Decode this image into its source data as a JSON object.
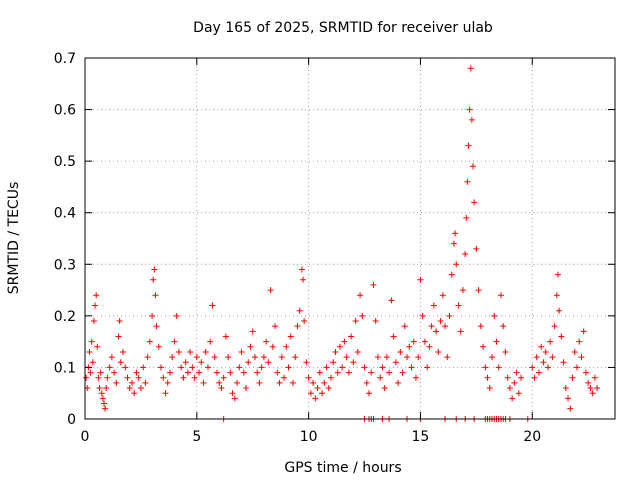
{
  "chart_data": {
    "type": "scatter",
    "title": "Day 165 of 2025, SRMTID for receiver ulab",
    "xlabel": "GPS time / hours",
    "ylabel": "SRMTID / TECUs",
    "xlim": [
      0,
      23.7
    ],
    "ylim": [
      0,
      0.7
    ],
    "x_ticks": [
      0,
      5,
      10,
      15,
      20
    ],
    "y_ticks": [
      0,
      0.1,
      0.2,
      0.3,
      0.4,
      0.5,
      0.6,
      0.7
    ],
    "x_tick_labels": [
      "0",
      "5",
      "10",
      "15",
      "20"
    ],
    "y_tick_labels": [
      "0",
      "0.1",
      "0.2",
      "0.3",
      "0.4",
      "0.5",
      "0.6",
      "0.7"
    ],
    "grid": true,
    "marker": "+",
    "color": "#ff0000",
    "series": [
      {
        "name": "SRMTID",
        "points": [
          [
            0.05,
            0.08
          ],
          [
            0.1,
            0.06
          ],
          [
            0.15,
            0.1
          ],
          [
            0.2,
            0.13
          ],
          [
            0.25,
            0.09
          ],
          [
            0.3,
            0.15
          ],
          [
            0.35,
            0.11
          ],
          [
            0.4,
            0.19
          ],
          [
            0.45,
            0.22
          ],
          [
            0.5,
            0.24
          ],
          [
            0.55,
            0.14
          ],
          [
            0.6,
            0.08
          ],
          [
            0.65,
            0.06
          ],
          [
            0.7,
            0.09
          ],
          [
            0.75,
            0.05
          ],
          [
            0.8,
            0.04
          ],
          [
            0.85,
            0.03
          ],
          [
            0.9,
            0.02
          ],
          [
            0.95,
            0.06
          ],
          [
            1.0,
            0.08
          ],
          [
            1.1,
            0.1
          ],
          [
            1.2,
            0.12
          ],
          [
            1.3,
            0.09
          ],
          [
            1.4,
            0.07
          ],
          [
            1.5,
            0.16
          ],
          [
            1.55,
            0.19
          ],
          [
            1.6,
            0.11
          ],
          [
            1.7,
            0.13
          ],
          [
            1.8,
            0.1
          ],
          [
            1.9,
            0.08
          ],
          [
            2.0,
            0.06
          ],
          [
            2.1,
            0.07
          ],
          [
            2.2,
            0.05
          ],
          [
            2.3,
            0.09
          ],
          [
            2.4,
            0.08
          ],
          [
            2.5,
            0.06
          ],
          [
            2.6,
            0.1
          ],
          [
            2.7,
            0.07
          ],
          [
            2.8,
            0.12
          ],
          [
            2.9,
            0.15
          ],
          [
            3.0,
            0.2
          ],
          [
            3.05,
            0.27
          ],
          [
            3.1,
            0.29
          ],
          [
            3.15,
            0.24
          ],
          [
            3.2,
            0.18
          ],
          [
            3.3,
            0.14
          ],
          [
            3.4,
            0.1
          ],
          [
            3.5,
            0.08
          ],
          [
            3.6,
            0.05
          ],
          [
            3.7,
            0.07
          ],
          [
            3.8,
            0.09
          ],
          [
            3.9,
            0.12
          ],
          [
            4.0,
            0.15
          ],
          [
            4.1,
            0.2
          ],
          [
            4.2,
            0.13
          ],
          [
            4.3,
            0.1
          ],
          [
            4.4,
            0.08
          ],
          [
            4.5,
            0.11
          ],
          [
            4.6,
            0.09
          ],
          [
            4.7,
            0.13
          ],
          [
            4.8,
            0.1
          ],
          [
            4.9,
            0.08
          ],
          [
            5.0,
            0.12
          ],
          [
            5.1,
            0.09
          ],
          [
            5.2,
            0.11
          ],
          [
            5.3,
            0.07
          ],
          [
            5.4,
            0.13
          ],
          [
            5.5,
            0.1
          ],
          [
            5.6,
            0.15
          ],
          [
            5.7,
            0.22
          ],
          [
            5.8,
            0.12
          ],
          [
            5.9,
            0.09
          ],
          [
            6.0,
            0.07
          ],
          [
            6.1,
            0.06
          ],
          [
            6.2,
            0.08
          ],
          [
            6.3,
            0.16
          ],
          [
            6.4,
            0.12
          ],
          [
            6.5,
            0.09
          ],
          [
            6.6,
            0.05
          ],
          [
            6.7,
            0.04
          ],
          [
            6.8,
            0.07
          ],
          [
            6.9,
            0.1
          ],
          [
            7.0,
            0.13
          ],
          [
            7.1,
            0.09
          ],
          [
            7.2,
            0.06
          ],
          [
            7.3,
            0.11
          ],
          [
            7.4,
            0.14
          ],
          [
            7.5,
            0.17
          ],
          [
            7.6,
            0.12
          ],
          [
            7.7,
            0.09
          ],
          [
            7.8,
            0.07
          ],
          [
            7.9,
            0.1
          ],
          [
            8.0,
            0.12
          ],
          [
            8.1,
            0.15
          ],
          [
            8.2,
            0.11
          ],
          [
            8.3,
            0.25
          ],
          [
            8.4,
            0.14
          ],
          [
            8.5,
            0.18
          ],
          [
            8.6,
            0.09
          ],
          [
            8.7,
            0.07
          ],
          [
            8.8,
            0.12
          ],
          [
            8.9,
            0.08
          ],
          [
            9.0,
            0.14
          ],
          [
            9.1,
            0.1
          ],
          [
            9.2,
            0.16
          ],
          [
            9.3,
            0.07
          ],
          [
            9.4,
            0.12
          ],
          [
            9.5,
            0.18
          ],
          [
            9.6,
            0.21
          ],
          [
            9.7,
            0.29
          ],
          [
            9.75,
            0.27
          ],
          [
            9.8,
            0.19
          ],
          [
            9.9,
            0.11
          ],
          [
            10.0,
            0.08
          ],
          [
            10.1,
            0.05
          ],
          [
            10.2,
            0.07
          ],
          [
            10.3,
            0.04
          ],
          [
            10.4,
            0.06
          ],
          [
            10.5,
            0.09
          ],
          [
            10.6,
            0.05
          ],
          [
            10.7,
            0.07
          ],
          [
            10.8,
            0.1
          ],
          [
            10.9,
            0.06
          ],
          [
            11.0,
            0.08
          ],
          [
            11.1,
            0.11
          ],
          [
            11.2,
            0.13
          ],
          [
            11.3,
            0.09
          ],
          [
            11.4,
            0.14
          ],
          [
            11.5,
            0.1
          ],
          [
            11.6,
            0.15
          ],
          [
            11.7,
            0.12
          ],
          [
            11.8,
            0.09
          ],
          [
            11.9,
            0.16
          ],
          [
            12.0,
            0.11
          ],
          [
            12.1,
            0.19
          ],
          [
            12.2,
            0.13
          ],
          [
            12.3,
            0.24
          ],
          [
            12.4,
            0.2
          ],
          [
            12.5,
            0.1
          ],
          [
            12.6,
            0.07
          ],
          [
            12.7,
            0.05
          ],
          [
            12.8,
            0.09
          ],
          [
            12.9,
            0.26
          ],
          [
            13.0,
            0.19
          ],
          [
            13.1,
            0.12
          ],
          [
            13.2,
            0.08
          ],
          [
            13.3,
            0.1
          ],
          [
            13.4,
            0.06
          ],
          [
            13.5,
            0.12
          ],
          [
            13.6,
            0.09
          ],
          [
            13.7,
            0.23
          ],
          [
            13.8,
            0.16
          ],
          [
            13.9,
            0.11
          ],
          [
            14.0,
            0.07
          ],
          [
            14.1,
            0.13
          ],
          [
            14.2,
            0.09
          ],
          [
            14.3,
            0.18
          ],
          [
            14.4,
            0.12
          ],
          [
            14.5,
            0.14
          ],
          [
            14.6,
            0.1
          ],
          [
            14.7,
            0.15
          ],
          [
            14.8,
            0.08
          ],
          [
            14.9,
            0.12
          ],
          [
            15.0,
            0.27
          ],
          [
            15.1,
            0.2
          ],
          [
            15.2,
            0.15
          ],
          [
            15.3,
            0.1
          ],
          [
            15.4,
            0.14
          ],
          [
            15.5,
            0.18
          ],
          [
            15.6,
            0.22
          ],
          [
            15.7,
            0.17
          ],
          [
            15.8,
            0.13
          ],
          [
            15.9,
            0.19
          ],
          [
            16.0,
            0.24
          ],
          [
            16.1,
            0.18
          ],
          [
            16.2,
            0.12
          ],
          [
            16.3,
            0.2
          ],
          [
            16.4,
            0.28
          ],
          [
            16.5,
            0.34
          ],
          [
            16.55,
            0.36
          ],
          [
            16.6,
            0.3
          ],
          [
            16.7,
            0.22
          ],
          [
            16.8,
            0.17
          ],
          [
            16.9,
            0.25
          ],
          [
            17.0,
            0.32
          ],
          [
            17.05,
            0.39
          ],
          [
            17.1,
            0.46
          ],
          [
            17.15,
            0.53
          ],
          [
            17.2,
            0.6
          ],
          [
            17.25,
            0.68
          ],
          [
            17.3,
            0.58
          ],
          [
            17.35,
            0.49
          ],
          [
            17.4,
            0.42
          ],
          [
            17.5,
            0.33
          ],
          [
            17.6,
            0.25
          ],
          [
            17.7,
            0.18
          ],
          [
            17.8,
            0.14
          ],
          [
            17.9,
            0.1
          ],
          [
            18.0,
            0.08
          ],
          [
            18.1,
            0.06
          ],
          [
            18.2,
            0.12
          ],
          [
            18.3,
            0.2
          ],
          [
            18.4,
            0.15
          ],
          [
            18.5,
            0.1
          ],
          [
            18.6,
            0.24
          ],
          [
            18.7,
            0.18
          ],
          [
            18.8,
            0.13
          ],
          [
            18.9,
            0.08
          ],
          [
            19.0,
            0.06
          ],
          [
            19.1,
            0.04
          ],
          [
            19.2,
            0.07
          ],
          [
            19.3,
            0.09
          ],
          [
            19.4,
            0.05
          ],
          [
            19.5,
            0.08
          ],
          [
            20.0,
            0.1
          ],
          [
            20.1,
            0.08
          ],
          [
            20.2,
            0.12
          ],
          [
            20.3,
            0.09
          ],
          [
            20.4,
            0.14
          ],
          [
            20.5,
            0.11
          ],
          [
            20.6,
            0.13
          ],
          [
            20.7,
            0.1
          ],
          [
            20.8,
            0.15
          ],
          [
            20.9,
            0.12
          ],
          [
            21.0,
            0.18
          ],
          [
            21.1,
            0.24
          ],
          [
            21.15,
            0.28
          ],
          [
            21.2,
            0.21
          ],
          [
            21.3,
            0.16
          ],
          [
            21.4,
            0.11
          ],
          [
            21.5,
            0.06
          ],
          [
            21.6,
            0.04
          ],
          [
            21.7,
            0.02
          ],
          [
            21.8,
            0.08
          ],
          [
            21.9,
            0.13
          ],
          [
            22.0,
            0.1
          ],
          [
            22.1,
            0.15
          ],
          [
            22.2,
            0.12
          ],
          [
            22.3,
            0.17
          ],
          [
            22.4,
            0.09
          ],
          [
            22.5,
            0.07
          ],
          [
            22.6,
            0.06
          ],
          [
            22.7,
            0.05
          ],
          [
            22.8,
            0.08
          ],
          [
            22.9,
            0.06
          ]
        ]
      }
    ],
    "zero_value_hours": [
      6.2,
      12.5,
      12.7,
      12.8,
      12.9,
      13.3,
      13.6,
      14.4,
      15.0,
      16.1,
      16.6,
      17.0,
      17.4,
      17.9,
      18.0,
      18.1,
      18.2,
      18.3,
      18.4,
      18.5,
      18.6,
      18.7,
      18.8,
      19.0,
      19.8
    ]
  }
}
